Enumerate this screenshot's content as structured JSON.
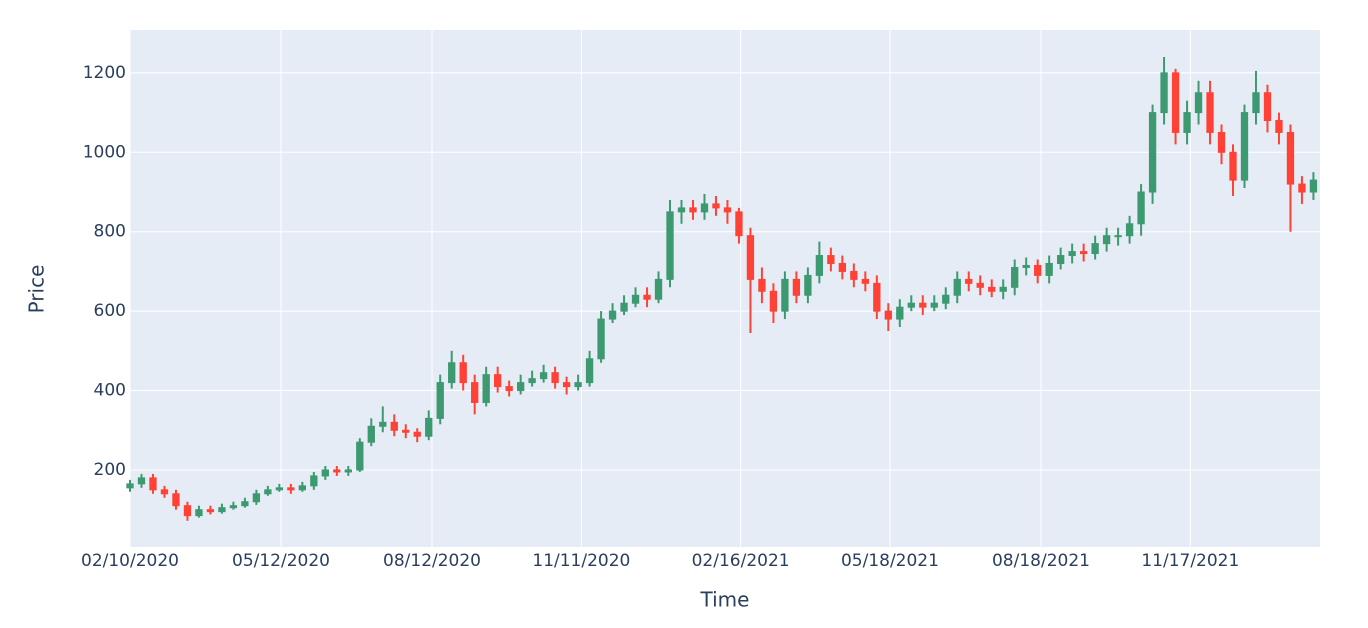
{
  "chart_data": {
    "type": "candlestick",
    "x_label": "Time",
    "y_label": "Price",
    "increasing_color": "#3d9970",
    "decreasing_color": "#ff4136",
    "background": "#e5ecf6",
    "grid": true,
    "xlim": [
      "2020-02-10",
      "2022-02-04"
    ],
    "ylim": [
      6,
      1308
    ],
    "xticks": [
      {
        "value": "2020-02-10",
        "label": "02/10/2020"
      },
      {
        "value": "2020-05-12",
        "label": "05/12/2020"
      },
      {
        "value": "2020-08-12",
        "label": "08/12/2020"
      },
      {
        "value": "2020-11-11",
        "label": "11/11/2020"
      },
      {
        "value": "2021-02-16",
        "label": "02/16/2021"
      },
      {
        "value": "2021-05-18",
        "label": "05/18/2021"
      },
      {
        "value": "2021-08-18",
        "label": "08/18/2021"
      },
      {
        "value": "2021-11-17",
        "label": "11/17/2021"
      }
    ],
    "yticks": [
      200,
      400,
      600,
      800,
      1000,
      1200
    ],
    "x": [
      "2020-02-10",
      "2020-02-17",
      "2020-02-24",
      "2020-03-02",
      "2020-03-09",
      "2020-03-16",
      "2020-03-23",
      "2020-03-30",
      "2020-04-06",
      "2020-04-13",
      "2020-04-20",
      "2020-04-27",
      "2020-05-04",
      "2020-05-11",
      "2020-05-18",
      "2020-05-25",
      "2020-06-01",
      "2020-06-08",
      "2020-06-15",
      "2020-06-22",
      "2020-06-29",
      "2020-07-06",
      "2020-07-13",
      "2020-07-20",
      "2020-07-27",
      "2020-08-03",
      "2020-08-10",
      "2020-08-17",
      "2020-08-24",
      "2020-08-31",
      "2020-09-07",
      "2020-09-14",
      "2020-09-21",
      "2020-09-28",
      "2020-10-05",
      "2020-10-12",
      "2020-10-19",
      "2020-10-26",
      "2020-11-02",
      "2020-11-09",
      "2020-11-16",
      "2020-11-23",
      "2020-11-30",
      "2020-12-07",
      "2020-12-14",
      "2020-12-21",
      "2020-12-28",
      "2021-01-04",
      "2021-01-11",
      "2021-01-18",
      "2021-01-25",
      "2021-02-01",
      "2021-02-08",
      "2021-02-15",
      "2021-02-22",
      "2021-03-01",
      "2021-03-08",
      "2021-03-15",
      "2021-03-22",
      "2021-03-29",
      "2021-04-05",
      "2021-04-12",
      "2021-04-19",
      "2021-04-26",
      "2021-05-03",
      "2021-05-10",
      "2021-05-17",
      "2021-05-24",
      "2021-05-31",
      "2021-06-07",
      "2021-06-14",
      "2021-06-21",
      "2021-06-28",
      "2021-07-05",
      "2021-07-12",
      "2021-07-19",
      "2021-07-26",
      "2021-08-02",
      "2021-08-09",
      "2021-08-16",
      "2021-08-23",
      "2021-08-30",
      "2021-09-06",
      "2021-09-13",
      "2021-09-20",
      "2021-09-27",
      "2021-10-04",
      "2021-10-11",
      "2021-10-18",
      "2021-10-25",
      "2021-11-01",
      "2021-11-08",
      "2021-11-15",
      "2021-11-22",
      "2021-11-29",
      "2021-12-06",
      "2021-12-13",
      "2021-12-20",
      "2021-12-27",
      "2022-01-03",
      "2022-01-10",
      "2022-01-17",
      "2022-01-24",
      "2022-01-31"
    ],
    "open": [
      155,
      165,
      180,
      150,
      140,
      110,
      85,
      100,
      95,
      105,
      110,
      120,
      140,
      150,
      155,
      150,
      160,
      185,
      200,
      195,
      200,
      270,
      310,
      320,
      300,
      295,
      285,
      330,
      420,
      470,
      420,
      370,
      440,
      410,
      400,
      420,
      430,
      445,
      420,
      410,
      420,
      480,
      580,
      600,
      620,
      640,
      630,
      680,
      850,
      860,
      850,
      870,
      860,
      850,
      790,
      680,
      650,
      600,
      680,
      640,
      690,
      740,
      720,
      700,
      680,
      670,
      600,
      580,
      610,
      620,
      610,
      620,
      640,
      680,
      670,
      660,
      650,
      660,
      710,
      715,
      690,
      720,
      740,
      750,
      745,
      770,
      790,
      790,
      820,
      900,
      1100,
      1200,
      1050,
      1100,
      1150,
      1050,
      1000,
      930,
      1100,
      1150,
      1080,
      1050,
      920,
      900
    ],
    "high": [
      175,
      190,
      190,
      160,
      150,
      120,
      110,
      110,
      115,
      120,
      130,
      150,
      160,
      165,
      165,
      170,
      195,
      210,
      210,
      210,
      280,
      330,
      360,
      340,
      315,
      305,
      350,
      440,
      500,
      490,
      440,
      460,
      460,
      425,
      440,
      450,
      465,
      460,
      435,
      440,
      500,
      600,
      620,
      640,
      660,
      660,
      700,
      880,
      880,
      880,
      895,
      890,
      880,
      860,
      810,
      710,
      670,
      700,
      700,
      710,
      775,
      760,
      740,
      720,
      700,
      690,
      620,
      630,
      640,
      640,
      640,
      660,
      700,
      700,
      690,
      680,
      680,
      730,
      735,
      730,
      740,
      760,
      770,
      770,
      790,
      810,
      810,
      840,
      920,
      1120,
      1240,
      1210,
      1130,
      1180,
      1180,
      1070,
      1020,
      1120,
      1205,
      1170,
      1100,
      1070,
      940,
      950
    ],
    "low": [
      145,
      155,
      140,
      130,
      100,
      72,
      80,
      88,
      90,
      100,
      105,
      112,
      135,
      145,
      140,
      145,
      150,
      175,
      185,
      185,
      195,
      260,
      295,
      285,
      280,
      270,
      275,
      315,
      405,
      400,
      340,
      360,
      395,
      385,
      390,
      410,
      420,
      405,
      390,
      400,
      410,
      470,
      570,
      590,
      610,
      610,
      620,
      660,
      820,
      830,
      830,
      840,
      820,
      770,
      545,
      620,
      570,
      580,
      620,
      620,
      670,
      700,
      680,
      660,
      650,
      580,
      550,
      560,
      600,
      590,
      600,
      605,
      620,
      650,
      640,
      635,
      630,
      640,
      690,
      670,
      670,
      705,
      720,
      725,
      730,
      750,
      765,
      770,
      790,
      870,
      1070,
      1020,
      1020,
      1070,
      1020,
      970,
      890,
      910,
      1070,
      1050,
      1020,
      800,
      870,
      880
    ],
    "close": [
      165,
      180,
      150,
      140,
      110,
      85,
      100,
      95,
      105,
      110,
      120,
      140,
      150,
      155,
      150,
      160,
      185,
      200,
      195,
      200,
      270,
      310,
      320,
      300,
      295,
      285,
      330,
      420,
      470,
      420,
      370,
      440,
      410,
      400,
      420,
      430,
      445,
      420,
      410,
      420,
      480,
      580,
      600,
      620,
      640,
      630,
      680,
      850,
      860,
      850,
      870,
      860,
      850,
      790,
      680,
      650,
      600,
      680,
      640,
      690,
      740,
      720,
      700,
      680,
      670,
      600,
      580,
      610,
      620,
      610,
      620,
      640,
      680,
      670,
      660,
      650,
      660,
      710,
      715,
      690,
      720,
      740,
      750,
      745,
      770,
      790,
      790,
      820,
      900,
      1100,
      1200,
      1050,
      1100,
      1150,
      1050,
      1000,
      930,
      1100,
      1150,
      1080,
      1050,
      920,
      900,
      930
    ]
  }
}
